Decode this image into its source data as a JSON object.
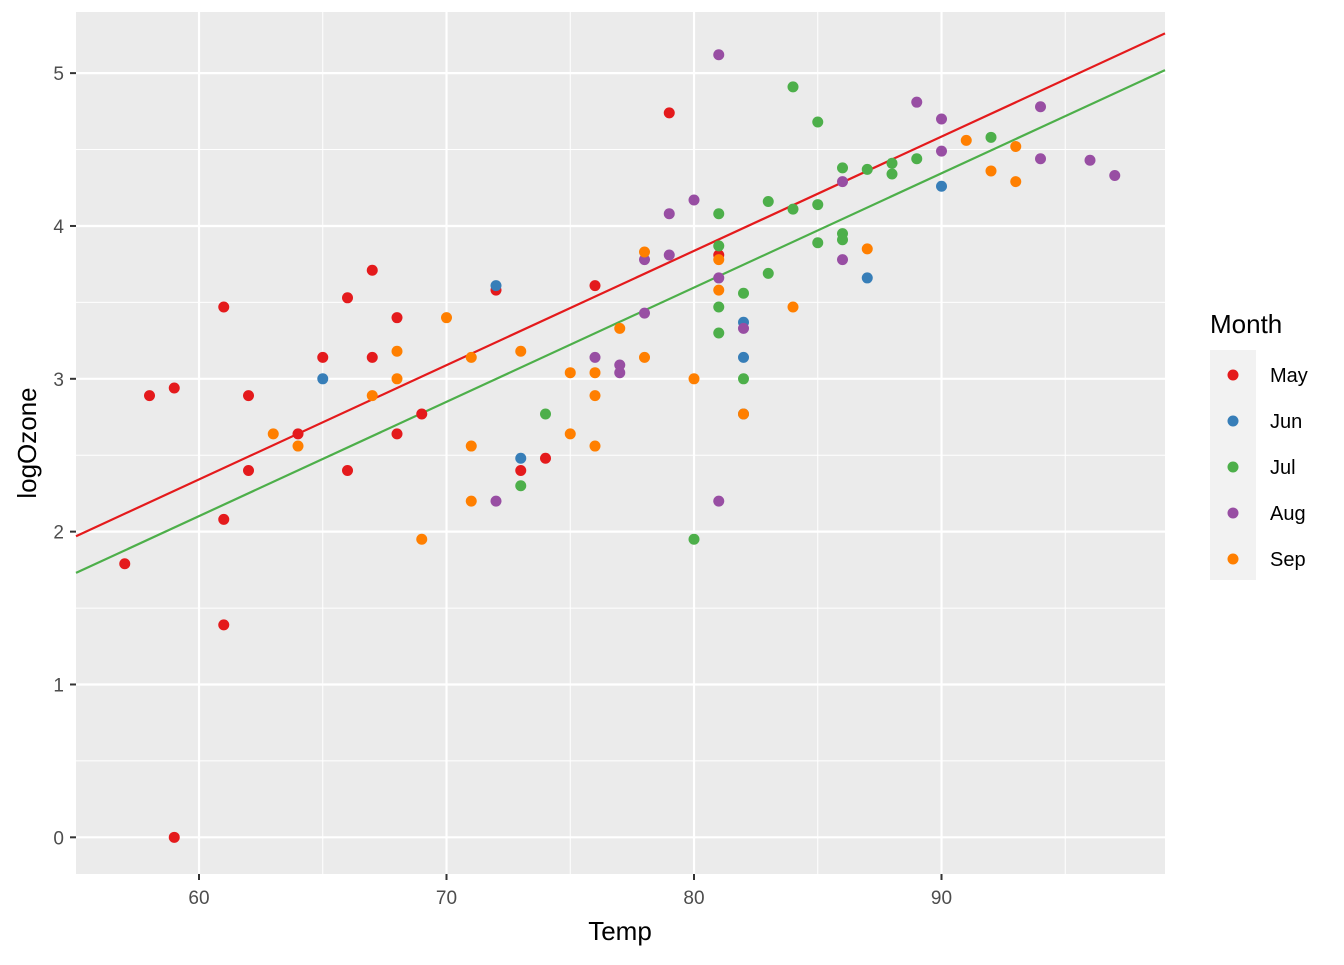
{
  "chart_data": {
    "type": "scatter",
    "title": "",
    "xlabel": "Temp",
    "ylabel": "logOzone",
    "xlim": [
      55.03,
      99.03
    ],
    "ylim": [
      -0.24,
      5.4
    ],
    "xticks": [
      60,
      70,
      80,
      90
    ],
    "yticks": [
      0,
      1,
      2,
      3,
      4,
      5
    ],
    "grid": true,
    "legend": {
      "title": "Month",
      "placement": "right"
    },
    "series": [
      {
        "name": "May",
        "color": "#E41A1C",
        "points": [
          [
            57,
            1.79
          ],
          [
            58,
            2.89
          ],
          [
            59,
            2.94
          ],
          [
            59,
            0
          ],
          [
            61,
            3.47
          ],
          [
            61,
            2.08
          ],
          [
            61,
            1.39
          ],
          [
            62,
            2.89
          ],
          [
            62,
            2.4
          ],
          [
            64,
            2.64
          ],
          [
            65,
            3.14
          ],
          [
            66,
            3.53
          ],
          [
            66,
            2.4
          ],
          [
            67,
            3.71
          ],
          [
            67,
            3.14
          ],
          [
            68,
            3.4
          ],
          [
            68,
            2.64
          ],
          [
            69,
            2.77
          ],
          [
            72,
            3.58
          ],
          [
            73,
            2.4
          ],
          [
            74,
            2.48
          ],
          [
            76,
            3.61
          ],
          [
            79,
            4.74
          ],
          [
            81,
            3.81
          ]
        ]
      },
      {
        "name": "Jun",
        "color": "#377EB8",
        "points": [
          [
            65,
            3.0
          ],
          [
            72,
            3.61
          ],
          [
            73,
            2.48
          ],
          [
            82,
            3.37
          ],
          [
            82,
            3.14
          ],
          [
            82,
            2.77
          ],
          [
            87,
            3.66
          ],
          [
            90,
            4.26
          ]
        ]
      },
      {
        "name": "Jul",
        "color": "#4DAF4A",
        "points": [
          [
            73,
            2.3
          ],
          [
            74,
            2.77
          ],
          [
            80,
            1.95
          ],
          [
            81,
            4.08
          ],
          [
            81,
            3.87
          ],
          [
            81,
            3.47
          ],
          [
            81,
            3.3
          ],
          [
            82,
            3.56
          ],
          [
            82,
            3.0
          ],
          [
            83,
            4.16
          ],
          [
            83,
            3.69
          ],
          [
            84,
            4.91
          ],
          [
            84,
            4.11
          ],
          [
            85,
            4.68
          ],
          [
            85,
            4.14
          ],
          [
            85,
            3.89
          ],
          [
            86,
            4.38
          ],
          [
            86,
            3.95
          ],
          [
            86,
            3.91
          ],
          [
            87,
            4.37
          ],
          [
            88,
            4.41
          ],
          [
            88,
            4.34
          ],
          [
            89,
            4.44
          ],
          [
            92,
            4.58
          ]
        ]
      },
      {
        "name": "Aug",
        "color": "#984EA3",
        "points": [
          [
            72,
            2.2
          ],
          [
            76,
            3.14
          ],
          [
            77,
            3.09
          ],
          [
            77,
            3.04
          ],
          [
            78,
            3.43
          ],
          [
            78,
            3.78
          ],
          [
            79,
            4.08
          ],
          [
            79,
            3.81
          ],
          [
            80,
            4.17
          ],
          [
            81,
            5.12
          ],
          [
            81,
            3.66
          ],
          [
            81,
            2.2
          ],
          [
            82,
            3.33
          ],
          [
            86,
            4.29
          ],
          [
            86,
            3.78
          ],
          [
            89,
            4.81
          ],
          [
            90,
            4.7
          ],
          [
            90,
            4.49
          ],
          [
            94,
            4.78
          ],
          [
            94,
            4.44
          ],
          [
            96,
            4.43
          ],
          [
            97,
            4.33
          ]
        ]
      },
      {
        "name": "Sep",
        "color": "#FF7F00",
        "points": [
          [
            63,
            2.64
          ],
          [
            64,
            2.56
          ],
          [
            67,
            2.89
          ],
          [
            68,
            3.18
          ],
          [
            68,
            3.0
          ],
          [
            69,
            1.95
          ],
          [
            70,
            3.4
          ],
          [
            71,
            3.14
          ],
          [
            71,
            2.56
          ],
          [
            71,
            2.2
          ],
          [
            73,
            3.18
          ],
          [
            75,
            3.04
          ],
          [
            75,
            2.64
          ],
          [
            76,
            3.04
          ],
          [
            76,
            2.89
          ],
          [
            76,
            2.56
          ],
          [
            77,
            3.33
          ],
          [
            78,
            3.83
          ],
          [
            78,
            3.14
          ],
          [
            80,
            3.0
          ],
          [
            81,
            3.78
          ],
          [
            81,
            3.58
          ],
          [
            82,
            2.77
          ],
          [
            84,
            3.47
          ],
          [
            87,
            3.85
          ],
          [
            91,
            4.56
          ],
          [
            92,
            4.36
          ],
          [
            93,
            4.52
          ],
          [
            93,
            4.29
          ]
        ]
      }
    ],
    "fit_lines": [
      {
        "name": "May fit",
        "color": "#E41A1C",
        "x": [
          55.03,
          99.03
        ],
        "y": [
          1.97,
          5.26
        ]
      },
      {
        "name": "Jul fit",
        "color": "#4DAF4A",
        "x": [
          55.03,
          99.03
        ],
        "y": [
          1.73,
          5.02
        ]
      }
    ]
  }
}
